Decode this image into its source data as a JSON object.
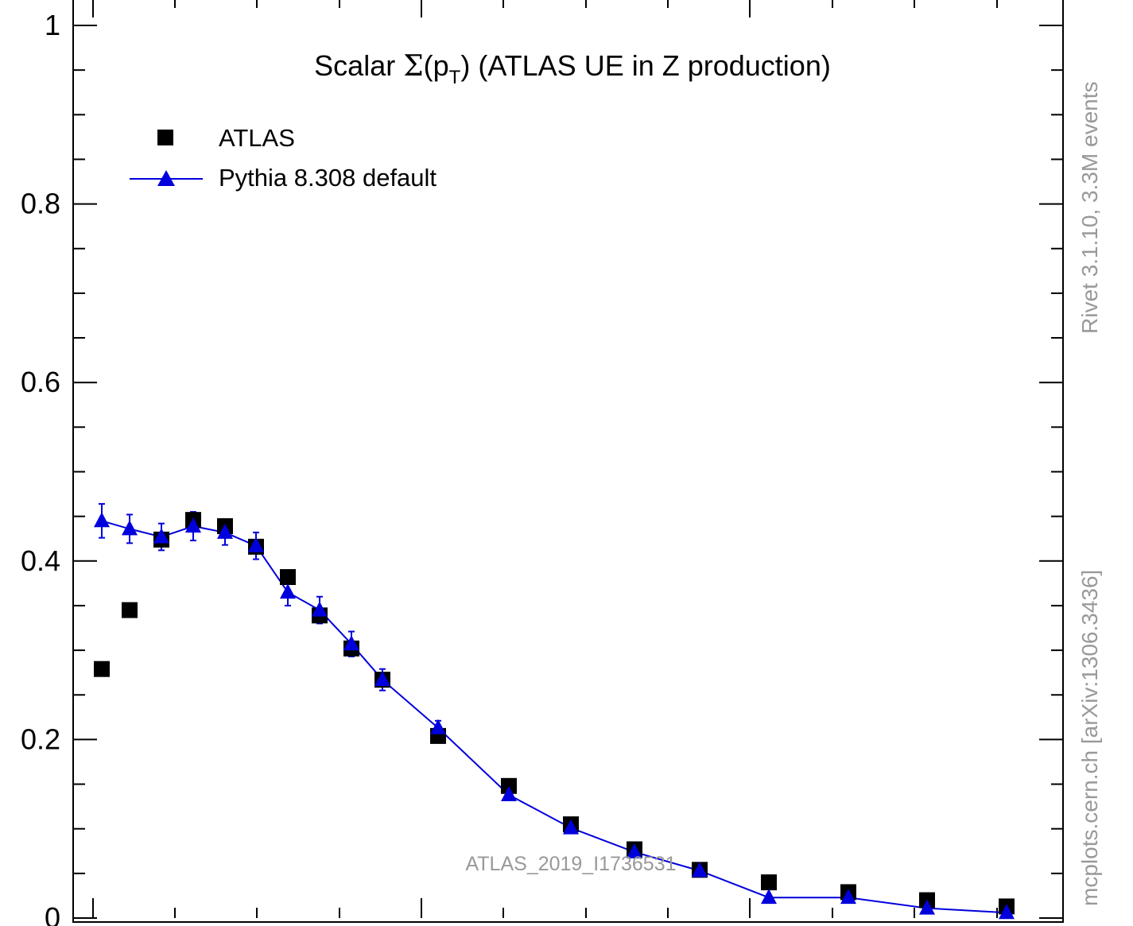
{
  "chart_data": {
    "type": "scatter",
    "title_prefix": "Scalar ",
    "title_sigma": "Σ",
    "title_open": "(p",
    "title_sub": "T",
    "title_rest": ") (ATLAS UE in Z production)",
    "analysis_id": "ATLAS_2019_I1736531",
    "side_label_top": "Rivet 3.1.10,  3.3M events",
    "side_label_bottom": "mcplots.cern.ch [arXiv:1306.3436]",
    "ylim": [
      0,
      1.0
    ],
    "y_tick_labels": [
      "0",
      "0.2",
      "0.4",
      "0.6",
      "0.8",
      "1"
    ],
    "y_tick_values": [
      0,
      0.2,
      0.4,
      0.6,
      0.8,
      1.0
    ],
    "grid": false,
    "legend_position": "top-left",
    "colors": {
      "data": "#000000",
      "mc": "#0000dd",
      "watermark": "#999999"
    },
    "series": [
      {
        "name": "ATLAS",
        "marker": "square",
        "values": [
          0.279,
          0.345,
          0.424,
          0.446,
          0.439,
          0.416,
          0.382,
          0.339,
          0.302,
          0.267,
          0.204,
          0.148,
          0.105,
          0.077,
          0.054,
          0.04,
          0.029,
          0.02,
          0.013
        ]
      },
      {
        "name": "Pythia 8.308 default",
        "marker": "triangle",
        "values": [
          0.445,
          0.436,
          0.427,
          0.439,
          0.432,
          0.417,
          0.365,
          0.345,
          0.307,
          0.267,
          0.213,
          0.138,
          0.101,
          0.074,
          0.053,
          0.023,
          0.023,
          0.011,
          0.006
        ],
        "errors": [
          0.019,
          0.016,
          0.015,
          0.016,
          0.014,
          0.015,
          0.015,
          0.015,
          0.014,
          0.012,
          0.008,
          0.005,
          0.005,
          0.004,
          0.004,
          0.002,
          0.002,
          0.002,
          0.002
        ]
      }
    ]
  }
}
